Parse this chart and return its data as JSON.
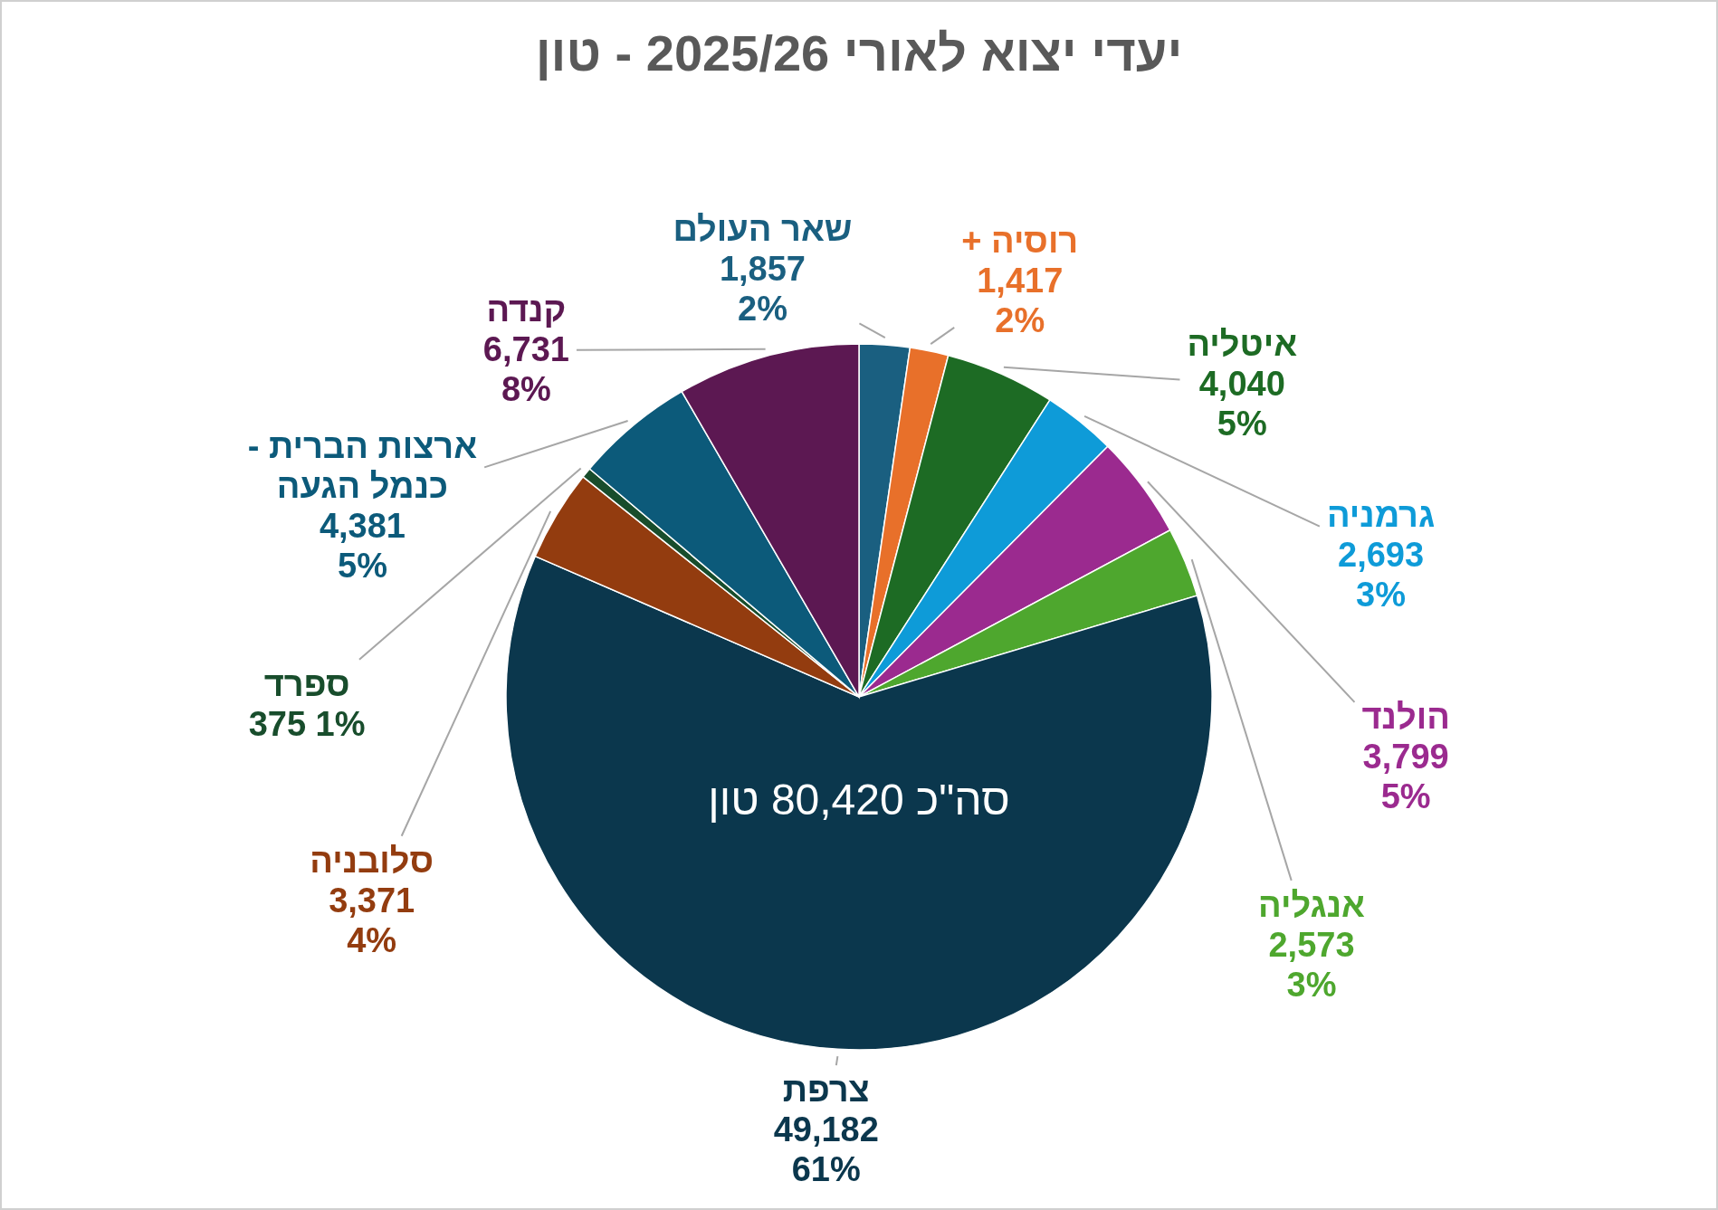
{
  "chart_data": {
    "type": "pie",
    "title": "יעדי יצוא לאורי 2025/26 - טון",
    "categories": [
      "שאר העולם",
      "רוסיה +",
      "איטליה",
      "גרמניה",
      "הולנד",
      "אנגליה",
      "צרפת",
      "סלובניה",
      "ספרד",
      "ארצות הברית - כנמל הגעה",
      "קנדה"
    ],
    "values": [
      1857,
      1417,
      4040,
      2693,
      3799,
      2573,
      49182,
      3371,
      375,
      4381,
      6731
    ],
    "colors": [
      "#1a5f80",
      "#e8702a",
      "#1d6b24",
      "#0e9bd8",
      "#9b2a8f",
      "#4ea72e",
      "#0b374d",
      "#933c0f",
      "#184d2c",
      "#0c5a7a",
      "#5c1852"
    ],
    "value_labels": [
      "1,857 2%",
      "1,417 2%",
      "4,040 5%",
      "2,693 3%",
      "3,799 5%",
      "2,573 3%",
      "49,182 61%",
      "3,371 4%",
      "375 1%",
      "4,381 5%",
      "6,731 8%"
    ],
    "annotations": [
      "סה\"כ 80,420 טון"
    ]
  }
}
